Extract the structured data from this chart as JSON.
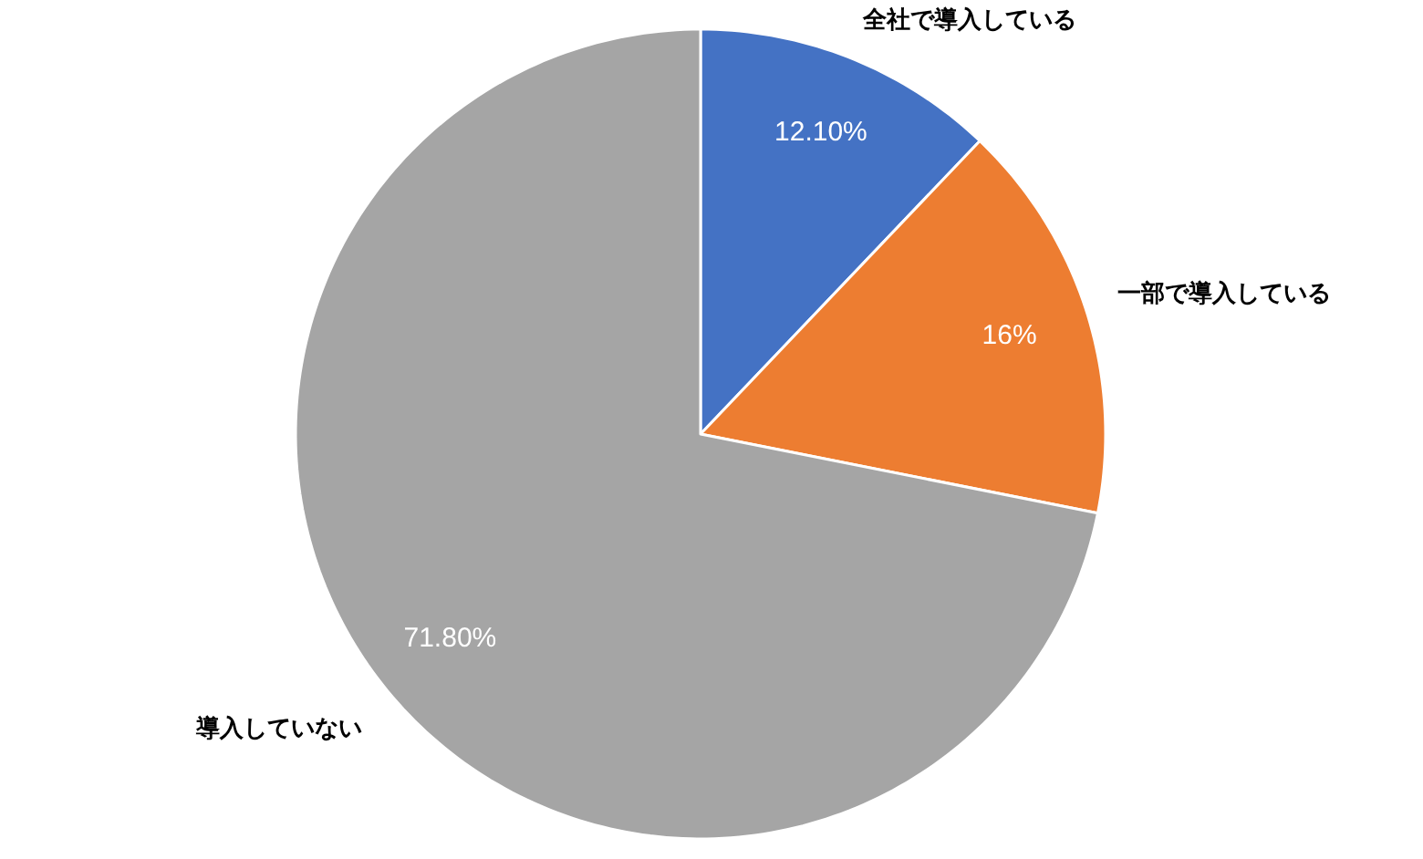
{
  "chart_data": {
    "type": "pie",
    "categories": [
      "全社で導入している",
      "一部で導入している",
      "導入していない"
    ],
    "values": [
      12.1,
      16,
      71.8
    ],
    "colors": [
      "#4472c4",
      "#ed7d31",
      "#a5a5a5"
    ],
    "value_labels": [
      "12.10%",
      "16%",
      "71.80%"
    ],
    "legend": false
  }
}
